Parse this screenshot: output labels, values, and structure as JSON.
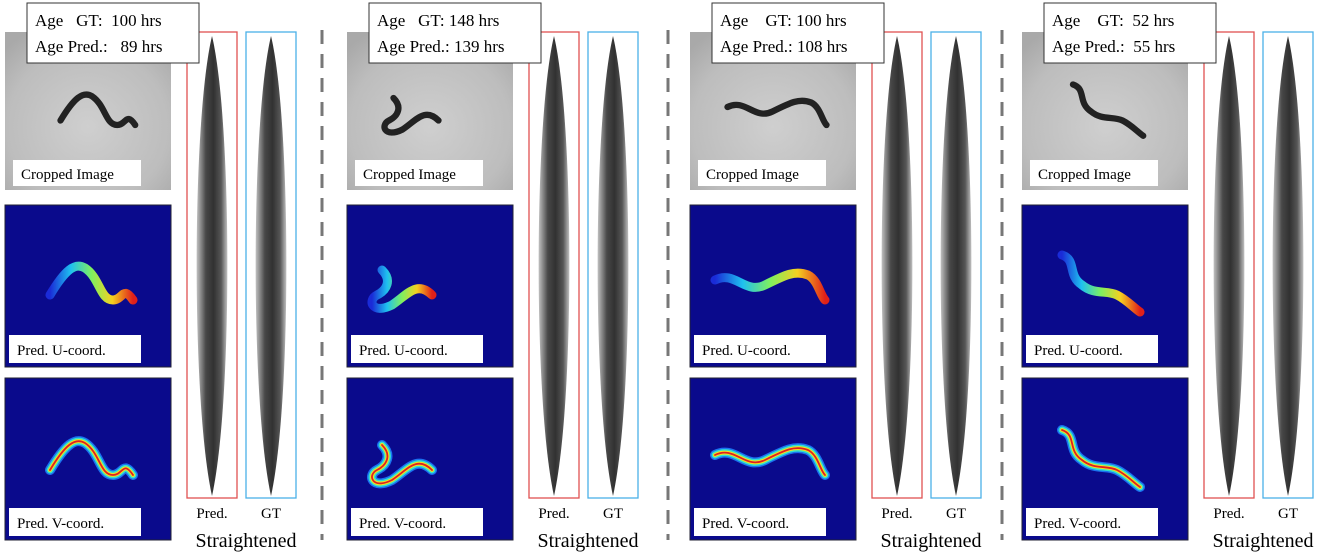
{
  "panels": [
    {
      "age_gt": "Age   GT:  100 hrs",
      "age_pred": "Age Pred.:   89 hrs",
      "cropped": "Cropped Image",
      "u_coord": "Pred. U-coord.",
      "v_coord": "Pred. V-coord.",
      "pred": "Pred.",
      "gt": "GT",
      "straightened": "Straightened"
    },
    {
      "age_gt": "Age   GT: 148 hrs",
      "age_pred": "Age Pred.: 139 hrs",
      "cropped": "Cropped Image",
      "u_coord": "Pred. U-coord.",
      "v_coord": "Pred. V-coord.",
      "pred": "Pred.",
      "gt": "GT",
      "straightened": "Straightened"
    },
    {
      "age_gt": "Age    GT: 100 hrs",
      "age_pred": "Age Pred.: 108 hrs",
      "cropped": "Cropped Image",
      "u_coord": "Pred. U-coord.",
      "v_coord": "Pred. V-coord.",
      "pred": "Pred.",
      "gt": "GT",
      "straightened": "Straightened"
    },
    {
      "age_gt": "Age    GT:  52 hrs",
      "age_pred": "Age Pred.:  55 hrs",
      "cropped": "Cropped Image",
      "u_coord": "Pred. U-coord.",
      "v_coord": "Pred. V-coord.",
      "pred": "Pred.",
      "gt": "GT",
      "straightened": "Straightened"
    }
  ]
}
